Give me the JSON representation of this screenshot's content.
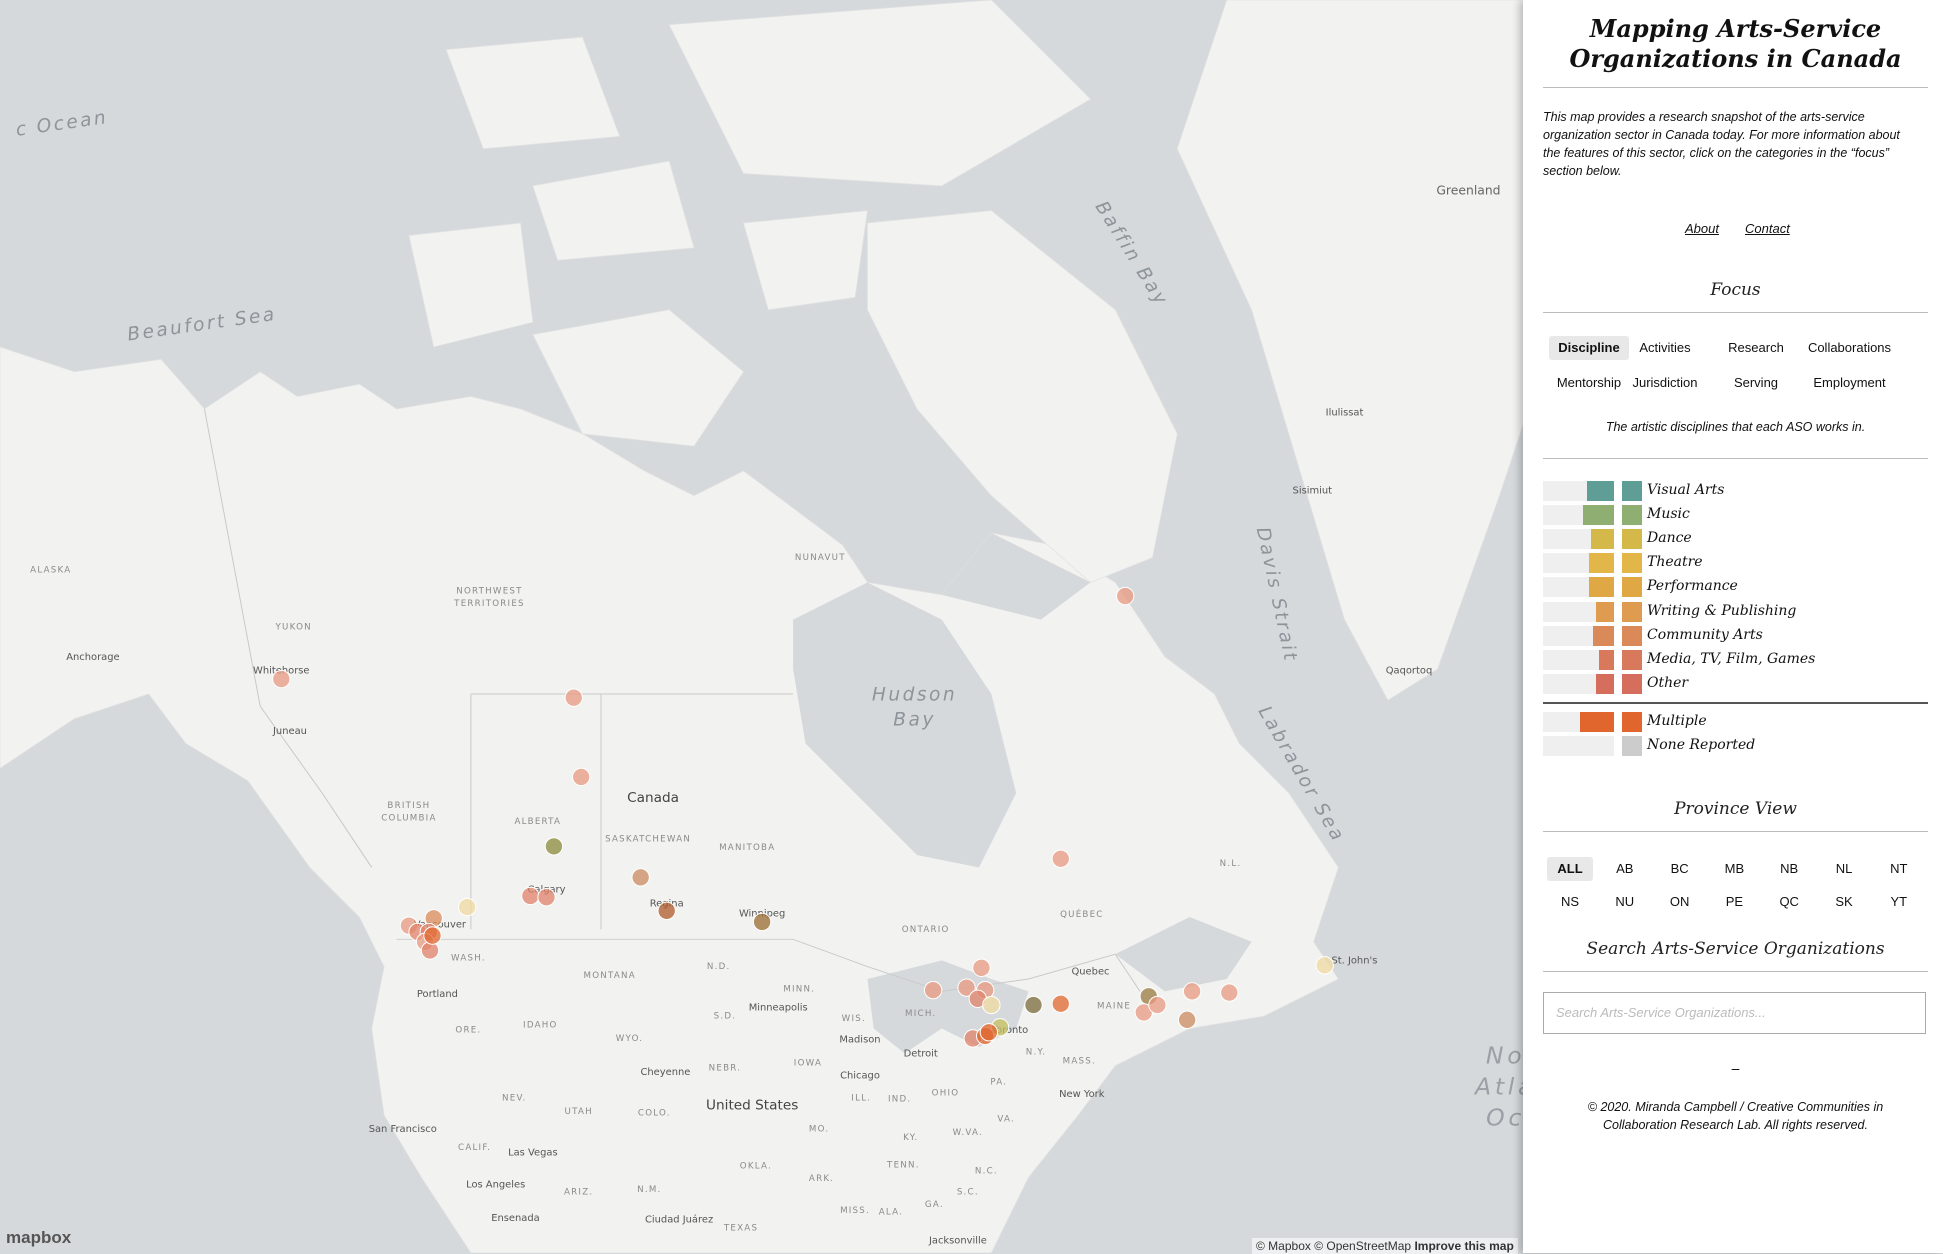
{
  "header": {
    "title": "Mapping Arts-Service Organizations in Canada",
    "description": "This map provides a research snapshot of the arts-service organization sector in Canada today. For more information about the features of this sector, click on the categories in the “focus” section below.",
    "links": [
      "About",
      "Contact"
    ]
  },
  "focus": {
    "title": "Focus",
    "tabs": [
      "Discipline",
      "Activities",
      "Research",
      "Collaborations",
      "Mentorship",
      "Jurisdiction",
      "Serving",
      "Employment"
    ],
    "active_tab": 0,
    "caption": "The artistic disciplines that each ASO works in."
  },
  "legend": {
    "items": [
      {
        "label": "Visual Arts",
        "color": "#5f9e96",
        "share": 0.38
      },
      {
        "label": "Music",
        "color": "#8fae72",
        "share": 0.43
      },
      {
        "label": "Dance",
        "color": "#d4b84a",
        "share": 0.33
      },
      {
        "label": "Theatre",
        "color": "#e2b649",
        "share": 0.35
      },
      {
        "label": "Performance",
        "color": "#e0a845",
        "share": 0.35
      },
      {
        "label": "Writing & Publishing",
        "color": "#df9b50",
        "share": 0.26
      },
      {
        "label": "Community Arts",
        "color": "#d98a58",
        "share": 0.29
      },
      {
        "label": "Media, TV, Film, Games",
        "color": "#d8795b",
        "share": 0.21
      },
      {
        "label": "Other",
        "color": "#d66e5e",
        "share": 0.26
      }
    ],
    "extra": [
      {
        "label": "Multiple",
        "color": "#e0662e",
        "share": 0.48
      },
      {
        "label": "None Reported",
        "color": "#cccccc",
        "share": 0
      }
    ]
  },
  "province_view": {
    "title": "Province View",
    "buttons": [
      "ALL",
      "AB",
      "BC",
      "MB",
      "NB",
      "NL",
      "NT",
      "NS",
      "NU",
      "ON",
      "PE",
      "QC",
      "SK",
      "YT"
    ],
    "active_button": 0
  },
  "search": {
    "title": "Search Arts-Service Organizations",
    "placeholder": "Search Arts-Service Organizations..."
  },
  "footer": {
    "separator": "–",
    "copyright": "© 2020. Miranda Campbell / Creative Communities in Collaboration Research Lab. All rights reserved."
  },
  "map": {
    "logo": "mapbox",
    "attribution": "© Mapbox © OpenStreetMap",
    "improve": "Improve this map",
    "labels": [
      "c Ocean",
      "Beaufort Sea",
      "Baffin Bay",
      "Greenland",
      "Hudson",
      "Bay",
      "Davis Strait",
      "Labrador Sea",
      "No",
      "Atla",
      "Oc",
      "NUNAVUT",
      "NORTHWEST",
      "TERRITORIES",
      "YUKON",
      "ALASKA",
      "Anchorage",
      "Whitehorse",
      "Juneau",
      "BRITISH",
      "COLUMBIA",
      "ALBERTA",
      "SASKATCHEWAN",
      "MANITOBA",
      "Canada",
      "ONTARIO",
      "QUÉBEC",
      "N.L.",
      "Ilulissat",
      "Sisimiut",
      "Qaqortoq",
      "Quebec",
      "St. John's",
      "MAINE",
      "Regina",
      "Winnipeg",
      "Calgary",
      "Vancouver",
      "Toronto",
      "WASH.",
      "Portland",
      "MONTANA",
      "N.D.",
      "MINN.",
      "Minneapolis",
      "S.D.",
      "IDAHO",
      "ORE.",
      "WYO.",
      "WIS.",
      "MICH.",
      "Madison",
      "Detroit",
      "N.Y.",
      "MASS.",
      "NEBR.",
      "IOWA",
      "Chicago",
      "Cheyenne",
      "OHIO",
      "PA.",
      "New York",
      "NEV.",
      "UTAH",
      "COLO.",
      "United States",
      "ILL.",
      "IND.",
      "KY.",
      "W.VA.",
      "VA.",
      "MO.",
      "San Francisco",
      "CALIF.",
      "Las Vegas",
      "TENN.",
      "N.C.",
      "OKLA.",
      "ARIZ.",
      "N.M.",
      "ARK.",
      "Los Angeles",
      "MISS.",
      "ALA.",
      "GA.",
      "S.C.",
      "Ensenada",
      "Ciudad Juárez",
      "TEXAS",
      "Jacksonville"
    ]
  }
}
